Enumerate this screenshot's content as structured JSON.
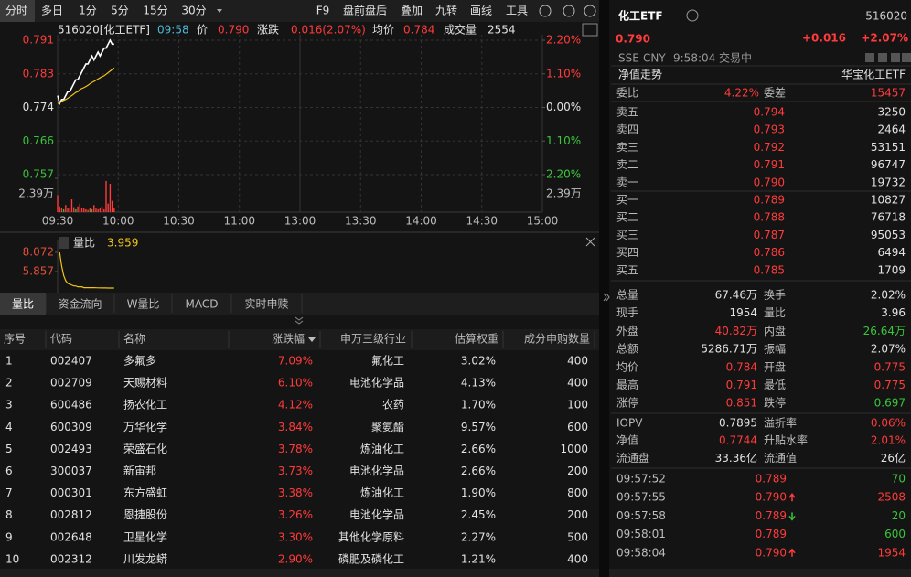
{
  "toolbar": {
    "periods": [
      "分时",
      "多日",
      "1分",
      "5分",
      "15分",
      "30分"
    ],
    "tools": [
      "F9",
      "盘前盘后",
      "叠加",
      "九转",
      "画线",
      "工具"
    ]
  },
  "quote_header": {
    "code": "516020[化工ETF]",
    "time": "09:58",
    "price": "0.790",
    "change_label": "涨跌",
    "change": "0.016(2.07%)",
    "avg": "0.784",
    "volume_label": "成交量",
    "volume": "2554"
  },
  "chart_data": [
    {
      "type": "line",
      "x": [
        0,
        1,
        2,
        3,
        4,
        5,
        6,
        7,
        8,
        9,
        10,
        11,
        12,
        13,
        14,
        15,
        16,
        17,
        18,
        19,
        20,
        21,
        22,
        23,
        24,
        25,
        26,
        27,
        28
      ],
      "series": [
        {
          "name": "价",
          "color": "#ffffff",
          "values": [
            0.777,
            0.775,
            0.776,
            0.776,
            0.777,
            0.778,
            0.778,
            0.779,
            0.78,
            0.781,
            0.781,
            0.782,
            0.783,
            0.784,
            0.785,
            0.785,
            0.786,
            0.787,
            0.786,
            0.787,
            0.788,
            0.787,
            0.788,
            0.789,
            0.789,
            0.79,
            0.791,
            0.79,
            0.79
          ]
        },
        {
          "name": "均价",
          "color": "#f0c419",
          "values": [
            0.775,
            0.7752,
            0.7755,
            0.7758,
            0.776,
            0.7763,
            0.7767,
            0.777,
            0.7774,
            0.7778,
            0.778,
            0.7785,
            0.7788,
            0.779,
            0.7793,
            0.7796,
            0.78,
            0.7803,
            0.7806,
            0.7809,
            0.7812,
            0.7815,
            0.7818,
            0.782,
            0.7824,
            0.7828,
            0.7832,
            0.7836,
            0.784
          ]
        }
      ],
      "xlim": [
        0,
        240
      ],
      "xticks": [
        {
          "value": 0,
          "label": "09:30"
        },
        {
          "value": 30,
          "label": "10:00"
        },
        {
          "value": 60,
          "label": "10:30"
        },
        {
          "value": 90,
          "label": "11:00"
        },
        {
          "value": 120,
          "label": "13:00"
        },
        {
          "value": 150,
          "label": "13:30"
        },
        {
          "value": 180,
          "label": "14:00"
        },
        {
          "value": 210,
          "label": "14:30"
        },
        {
          "value": 240,
          "label": "15:00"
        }
      ],
      "ylim": [
        0.757,
        0.791
      ],
      "yticks": [
        0.791,
        {
          "value": 0.7825,
          "label": "0.783"
        },
        0.774,
        {
          "value": 0.7655,
          "label": "0.766"
        },
        0.757
      ],
      "y2lim": [
        -2.2,
        2.2
      ],
      "y2ticks": [
        {
          "value": 2.2,
          "label": "2.20%"
        },
        {
          "value": 1.1,
          "label": "1.10%"
        },
        {
          "value": 0,
          "label": "0.00%"
        },
        {
          "value": -1.1,
          "label": "1.10%"
        },
        {
          "value": -2.2,
          "label": "2.20%"
        }
      ],
      "grid": true
    },
    {
      "type": "bar",
      "x": [
        0,
        1,
        2,
        3,
        4,
        5,
        6,
        7,
        8,
        9,
        10,
        11,
        12,
        13,
        14,
        15,
        16,
        17,
        18,
        19,
        20,
        21,
        22,
        23,
        24,
        25,
        26,
        27,
        28
      ],
      "values": [
        12000,
        4000,
        3000,
        2000,
        5000,
        3000,
        2500,
        9000,
        3500,
        2000,
        4000,
        6000,
        3000,
        2500,
        2000,
        1500,
        3000,
        2000,
        5000,
        2500,
        2000,
        3000,
        4000,
        2000,
        22000,
        6000,
        20000,
        8000,
        2554
      ],
      "colors": [
        "#ff3b3b",
        "#ff3b3b",
        "#ff3b3b",
        "#2fbf2f",
        "#ff3b3b",
        "#ff3b3b",
        "#ff3b3b",
        "#ff3b3b",
        "#ff3b3b",
        "#2fbf2f",
        "#ff3b3b",
        "#ff3b3b",
        "#ff3b3b",
        "#ff3b3b",
        "#ff3b3b",
        "#ff3b3b",
        "#ff3b3b",
        "#2fbf2f",
        "#ff3b3b",
        "#ff3b3b",
        "#ff3b3b",
        "#ff3b3b",
        "#ff3b3b",
        "#ff3b3b",
        "#ff3b3b",
        "#ff3b3b",
        "#ff3b3b",
        "#ff3b3b",
        "#ff3b3b"
      ],
      "xlim": [
        0,
        240
      ],
      "ylim": [
        0,
        23900
      ],
      "yticks": [
        {
          "value": 23900,
          "label": "2.39万"
        }
      ]
    },
    {
      "type": "line",
      "x": [
        1,
        2,
        3,
        4,
        5,
        6,
        7,
        8,
        9,
        10,
        11,
        12,
        13,
        14,
        15,
        16,
        17,
        18,
        19,
        20,
        21,
        22,
        23,
        24,
        25,
        26,
        27,
        28
      ],
      "series": [
        {
          "name": "量比",
          "color": "#f0c419",
          "values": [
            8.072,
            6.5,
            5.4,
            4.8,
            4.5,
            4.4,
            4.3,
            4.2,
            4.2,
            4.1,
            4.1,
            4.1,
            4.0,
            4.0,
            4.0,
            4.0,
            4.0,
            4.0,
            3.99,
            3.98,
            3.98,
            3.97,
            3.97,
            3.97,
            3.96,
            3.96,
            3.96,
            3.959
          ]
        }
      ],
      "latest_value": "3.959",
      "xlim": [
        0,
        240
      ],
      "ylim": [
        3.642,
        8.072
      ],
      "yticks": [
        8.072,
        5.857
      ]
    }
  ],
  "tabs": [
    "量比",
    "资金流向",
    "W量比",
    "MACD",
    "实时申赎"
  ],
  "table": {
    "columns": [
      "序号",
      "代码",
      "名称",
      "涨跌幅",
      "申万三级行业",
      "估算权重",
      "成分申购数量"
    ],
    "rows": [
      [
        "1",
        "002407",
        "多氟多",
        "7.09%",
        "氟化工",
        "3.02%",
        "400"
      ],
      [
        "2",
        "002709",
        "天赐材料",
        "6.10%",
        "电池化学品",
        "4.13%",
        "400"
      ],
      [
        "3",
        "600486",
        "扬农化工",
        "4.12%",
        "农药",
        "1.70%",
        "100"
      ],
      [
        "4",
        "600309",
        "万华化学",
        "3.84%",
        "聚氨酯",
        "9.57%",
        "600"
      ],
      [
        "5",
        "002493",
        "荣盛石化",
        "3.78%",
        "炼油化工",
        "2.66%",
        "1000"
      ],
      [
        "6",
        "300037",
        "新宙邦",
        "3.73%",
        "电池化学品",
        "2.66%",
        "200"
      ],
      [
        "7",
        "000301",
        "东方盛虹",
        "3.38%",
        "炼油化工",
        "1.90%",
        "800"
      ],
      [
        "8",
        "002812",
        "恩捷股份",
        "3.26%",
        "电池化学品",
        "2.45%",
        "200"
      ],
      [
        "9",
        "002648",
        "卫星化学",
        "3.30%",
        "其他化学原料",
        "2.27%",
        "500"
      ],
      [
        "10",
        "002312",
        "川发龙蟒",
        "2.90%",
        "磷肥及磷化工",
        "1.21%",
        "400"
      ]
    ]
  },
  "right": {
    "stock": {
      "name": "化工ETF",
      "code": "516020",
      "price": "0.790",
      "change": "+0.016",
      "change_pct": "+2.07%",
      "exchange": "SSE",
      "currency": "CNY",
      "time": "9:58:04",
      "status": "交易中"
    },
    "nav": {
      "label": "净值走势",
      "fund": "华宝化工ETF"
    },
    "commission": {
      "ratio_label": "委比",
      "ratio": "4.22%",
      "diff_label": "委差",
      "diff": "15457"
    },
    "asks": [
      {
        "label": "卖五",
        "price": "0.794",
        "volume": "3250"
      },
      {
        "label": "卖四",
        "price": "0.793",
        "volume": "2464"
      },
      {
        "label": "卖三",
        "price": "0.792",
        "volume": "53151"
      },
      {
        "label": "卖二",
        "price": "0.791",
        "volume": "96747"
      },
      {
        "label": "卖一",
        "price": "0.790",
        "volume": "19732"
      }
    ],
    "bids": [
      {
        "label": "买一",
        "price": "0.789",
        "volume": "10827"
      },
      {
        "label": "买二",
        "price": "0.788",
        "volume": "76718"
      },
      {
        "label": "买三",
        "price": "0.787",
        "volume": "95053"
      },
      {
        "label": "买四",
        "price": "0.786",
        "volume": "6494"
      },
      {
        "label": "买五",
        "price": "0.785",
        "volume": "1709"
      }
    ],
    "stats": [
      [
        {
          "label": "总量",
          "value": "67.46万"
        },
        {
          "label": "换手",
          "value": "2.02%"
        }
      ],
      [
        {
          "label": "现手",
          "value": "1954"
        },
        {
          "label": "量比",
          "value": "3.96"
        }
      ],
      [
        {
          "label": "外盘",
          "value": "40.82万",
          "color": "#ff3b3b"
        },
        {
          "label": "内盘",
          "value": "26.64万",
          "color": "#3cc43c"
        }
      ],
      [
        {
          "label": "总额",
          "value": "5286.71万"
        },
        {
          "label": "振幅",
          "value": "2.07%"
        }
      ],
      [
        {
          "label": "均价",
          "value": "0.784",
          "color": "#ff3b3b"
        },
        {
          "label": "开盘",
          "value": "0.775",
          "color": "#ff3b3b"
        }
      ],
      [
        {
          "label": "最高",
          "value": "0.791",
          "color": "#ff3b3b"
        },
        {
          "label": "最低",
          "value": "0.775",
          "color": "#ff3b3b"
        }
      ],
      [
        {
          "label": "涨停",
          "value": "0.851",
          "color": "#ff3b3b"
        },
        {
          "label": "跌停",
          "value": "0.697",
          "color": "#3cc43c"
        }
      ]
    ],
    "fund_stats": [
      [
        {
          "label": "IOPV",
          "value": "0.7895"
        },
        {
          "label": "溢折率",
          "value": "0.06%",
          "color": "#ff3b3b"
        }
      ],
      [
        {
          "label": "净值",
          "value": "0.7744",
          "color": "#ff3b3b"
        },
        {
          "label": "升贴水率",
          "value": "2.01%",
          "color": "#ff3b3b"
        }
      ],
      [
        {
          "label": "流通盘",
          "value": "33.36亿"
        },
        {
          "label": "流通值",
          "value": "26亿"
        }
      ]
    ],
    "trades": [
      {
        "time": "09:57:52",
        "price": "0.789",
        "volume": "70",
        "color": "#3cc43c"
      },
      {
        "time": "09:57:55",
        "price": "0.790",
        "direction": "up",
        "volume": "2508",
        "color": "#ff3b3b"
      },
      {
        "time": "09:57:58",
        "price": "0.789",
        "direction": "down",
        "volume": "20",
        "color": "#3cc43c"
      },
      {
        "time": "09:58:01",
        "price": "0.789",
        "volume": "600",
        "color": "#3cc43c"
      },
      {
        "time": "09:58:04",
        "price": "0.790",
        "direction": "up",
        "volume": "1954",
        "color": "#ff3b3b"
      }
    ]
  }
}
